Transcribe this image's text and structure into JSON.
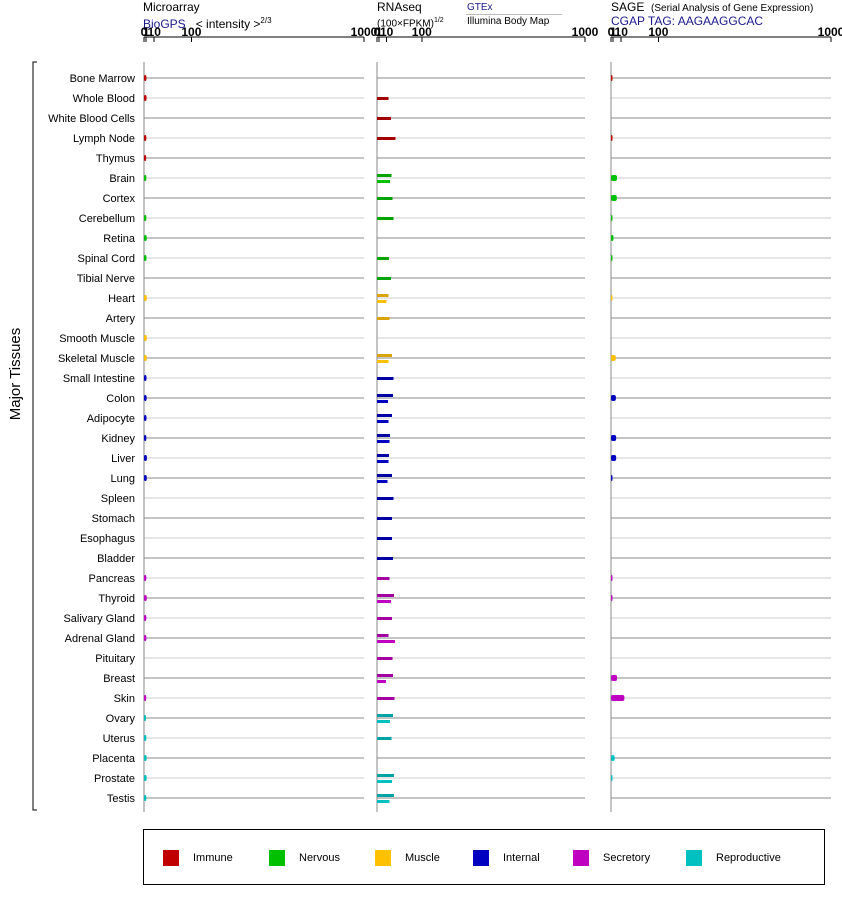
{
  "headers": {
    "microarray": {
      "title": "Microarray",
      "source": "BioGPS",
      "unit_prefix": "< intensity >",
      "unit_power": "2/3"
    },
    "rnaseq": {
      "title": "RNAseq",
      "unit_prefix": "(100×FPKM)",
      "unit_power": "1/2",
      "source1": "GTEx",
      "source2": "Illumina Body Map"
    },
    "sage": {
      "title": "SAGE",
      "subtitle": "(Serial Analysis of Gene Expression)",
      "tag": "CGAP TAG: AAGAAGGCAC"
    }
  },
  "y_axis_label": "Major Tissues",
  "legend": [
    {
      "key": "immune",
      "label": "Immune",
      "color": "#c00000"
    },
    {
      "key": "nervous",
      "label": "Nervous",
      "color": "#00c000"
    },
    {
      "key": "muscle",
      "label": "Muscle",
      "color": "#ffc000"
    },
    {
      "key": "internal",
      "label": "Internal",
      "color": "#0000c0"
    },
    {
      "key": "secretory",
      "label": "Secretory",
      "color": "#c000c0"
    },
    {
      "key": "reproductive",
      "label": "Reproductive",
      "color": "#00c0c0"
    }
  ],
  "chart_data": {
    "type": "bar",
    "orientation": "horizontal",
    "x_scale": "power",
    "x_ticks": [
      "0",
      "1",
      "10",
      "100",
      "1000"
    ],
    "panels": [
      {
        "key": "microarray",
        "xlim": [
          0,
          1000
        ]
      },
      {
        "key": "rnaseq",
        "xlim": [
          0,
          1000
        ],
        "gtex_color_shade": "darker",
        "ibm_series": "second bar"
      },
      {
        "key": "sage",
        "xlim": [
          0,
          1000
        ]
      }
    ],
    "tissues": [
      {
        "name": "Bone Marrow",
        "group": "immune",
        "microarray": 1.15,
        "gtex": null,
        "ibm": null,
        "sage": 0.03
      },
      {
        "name": "Whole Blood",
        "group": "immune",
        "microarray": 1.25,
        "gtex": 13,
        "ibm": null,
        "sage": null
      },
      {
        "name": "White Blood Cells",
        "group": "immune",
        "microarray": null,
        "gtex": 17,
        "ibm": null,
        "sage": null
      },
      {
        "name": "Lymph Node",
        "group": "immune",
        "microarray": 1.1,
        "gtex": 26,
        "ibm": null,
        "sage": 0.03
      },
      {
        "name": "Thymus",
        "group": "immune",
        "microarray": 1.0,
        "gtex": null,
        "ibm": null,
        "sage": null
      },
      {
        "name": "Brain",
        "group": "nervous",
        "microarray": 1.1,
        "gtex": 18,
        "ibm": 16,
        "sage": 4.5
      },
      {
        "name": "Cortex",
        "group": "nervous",
        "microarray": null,
        "gtex": 20,
        "ibm": null,
        "sage": 4.3
      },
      {
        "name": "Cerebellum",
        "group": "nervous",
        "microarray": 1.1,
        "gtex": 22,
        "ibm": null,
        "sage": 0.02
      },
      {
        "name": "Retina",
        "group": "nervous",
        "microarray": 1.4,
        "gtex": null,
        "ibm": null,
        "sage": 1.2
      },
      {
        "name": "Spinal Cord",
        "group": "nervous",
        "microarray": 1.2,
        "gtex": 14,
        "ibm": null,
        "sage": 0.02
      },
      {
        "name": "Tibial Nerve",
        "group": "nervous",
        "microarray": null,
        "gtex": 17,
        "ibm": null,
        "sage": null
      },
      {
        "name": "Heart",
        "group": "muscle",
        "microarray": 1.4,
        "gtex": 13,
        "ibm": 10,
        "sage": 0.01
      },
      {
        "name": "Artery",
        "group": "muscle",
        "microarray": null,
        "gtex": 15,
        "ibm": null,
        "sage": null
      },
      {
        "name": "Smooth Muscle",
        "group": "muscle",
        "microarray": 1.4,
        "gtex": null,
        "ibm": null,
        "sage": null
      },
      {
        "name": "Skeletal Muscle",
        "group": "muscle",
        "microarray": 1.4,
        "gtex": 19,
        "ibm": 13,
        "sage": 3.2
      },
      {
        "name": "Small Intestine",
        "group": "internal",
        "microarray": 1.2,
        "gtex": 22,
        "ibm": null,
        "sage": null
      },
      {
        "name": "Colon",
        "group": "internal",
        "microarray": 1.3,
        "gtex": 21,
        "ibm": 12,
        "sage": 3.3
      },
      {
        "name": "Adipocyte",
        "group": "internal",
        "microarray": 1.2,
        "gtex": 19,
        "ibm": 13,
        "sage": null
      },
      {
        "name": "Kidney",
        "group": "internal",
        "microarray": 1.1,
        "gtex": 16,
        "ibm": 15,
        "sage": 3.6
      },
      {
        "name": "Liver",
        "group": "internal",
        "microarray": 1.5,
        "gtex": 14,
        "ibm": 13,
        "sage": 3.6
      },
      {
        "name": "Lung",
        "group": "internal",
        "microarray": 1.4,
        "gtex": 19,
        "ibm": 11,
        "sage": 0.03
      },
      {
        "name": "Spleen",
        "group": "internal",
        "microarray": null,
        "gtex": 22,
        "ibm": null,
        "sage": null
      },
      {
        "name": "Stomach",
        "group": "internal",
        "microarray": null,
        "gtex": 19,
        "ibm": null,
        "sage": null
      },
      {
        "name": "Esophagus",
        "group": "internal",
        "microarray": null,
        "gtex": 19,
        "ibm": null,
        "sage": null
      },
      {
        "name": "Bladder",
        "group": "internal",
        "microarray": null,
        "gtex": 21,
        "ibm": null,
        "sage": null
      },
      {
        "name": "Pancreas",
        "group": "secretory",
        "microarray": 1.1,
        "gtex": 15,
        "ibm": null,
        "sage": 0.03
      },
      {
        "name": "Thyroid",
        "group": "secretory",
        "microarray": 1.4,
        "gtex": 23,
        "ibm": 17,
        "sage": 0.03
      },
      {
        "name": "Salivary Gland",
        "group": "secretory",
        "microarray": 1.1,
        "gtex": 19,
        "ibm": null,
        "sage": null
      },
      {
        "name": "Adrenal Gland",
        "group": "secretory",
        "microarray": 1.1,
        "gtex": 13,
        "ibm": 25,
        "sage": null
      },
      {
        "name": "Pituitary",
        "group": "secretory",
        "microarray": null,
        "gtex": 20,
        "ibm": null,
        "sage": null
      },
      {
        "name": "Breast",
        "group": "secretory",
        "microarray": null,
        "gtex": 21,
        "ibm": 9,
        "sage": 4.6
      },
      {
        "name": "Skin",
        "group": "secretory",
        "microarray": 1.0,
        "gtex": 24,
        "ibm": null,
        "sage": 15
      },
      {
        "name": "Ovary",
        "group": "reproductive",
        "microarray": 0.9,
        "gtex": 21,
        "ibm": 16,
        "sage": null
      },
      {
        "name": "Uterus",
        "group": "reproductive",
        "microarray": 1.1,
        "gtex": 18,
        "ibm": null,
        "sage": null
      },
      {
        "name": "Placenta",
        "group": "reproductive",
        "microarray": 1.3,
        "gtex": null,
        "ibm": null,
        "sage": 2.1
      },
      {
        "name": "Prostate",
        "group": "reproductive",
        "microarray": 1.3,
        "gtex": 23,
        "ibm": 19,
        "sage": 0.02
      },
      {
        "name": "Testis",
        "group": "reproductive",
        "microarray": 1.1,
        "gtex": 23,
        "ibm": 15,
        "sage": null
      }
    ]
  }
}
